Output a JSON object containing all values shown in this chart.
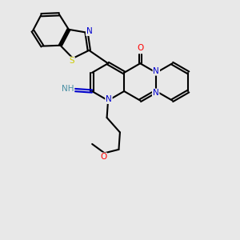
{
  "bg": "#e8e8e8",
  "bond_color": "#000000",
  "lw": 1.5,
  "dbo": 0.055,
  "atom_colors": {
    "N": "#0000cc",
    "O": "#ff0000",
    "S": "#cccc00",
    "NH": "#4a90a4"
  },
  "fs": 7.5
}
